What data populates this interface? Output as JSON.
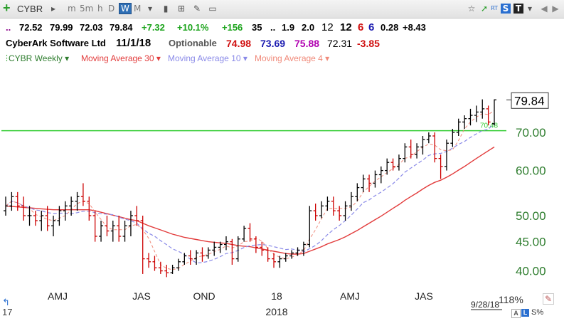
{
  "toolbar": {
    "symbol": "CYBR",
    "timeframes": [
      "m",
      "5m",
      "h",
      "D",
      "W",
      "M"
    ],
    "selected_timeframe": "W",
    "right_icons": [
      "star-icon",
      "rt-icon",
      "s-icon",
      "t-icon",
      "chevron-down-icon",
      "left-arrow-icon",
      "right-arrow-icon"
    ]
  },
  "quote_row": {
    "dots": "..",
    "open": "72.52",
    "high": "79.99",
    "low": "72.03",
    "close": "79.84",
    "change": "+7.32",
    "change_pct": "+10.1%",
    "v1": "+156",
    "v2": "35",
    "v3": "..",
    "v4": "1.9",
    "v5": "2.0",
    "v6": "12",
    "v7": "12",
    "v8": "6",
    "v9": "6",
    "v10": "0.28",
    "v11": "+8.43"
  },
  "info_row": {
    "company": "CyberArk Software Ltd",
    "date": "11/1/18",
    "optionable": "Optionable",
    "ma30": "74.98",
    "ma10": "73.69",
    "ma4": "75.88",
    "val": "72.31",
    "diff": "-3.85"
  },
  "legend": {
    "main": "CYBR Weekly",
    "ma30": "Moving Average 30",
    "ma10": "Moving Average 10",
    "ma4": "Moving Average 4"
  },
  "colors": {
    "up": "#000000",
    "down": "#cc0000",
    "ma30": "#e23b3b",
    "ma10": "#8a8ae8",
    "ma4": "#f08a7a",
    "green_line": "#33cc33",
    "axis_text": "#2e7d2e"
  },
  "chart_data": {
    "type": "candlestick-ohlc",
    "symbol": "CYBR",
    "interval": "weekly",
    "y_scale": "log",
    "ylim": [
      37.5,
      92
    ],
    "y_ticks": [
      "40.00",
      "45.00",
      "50.00",
      "60.00",
      "70.00"
    ],
    "last_price_label": "79.84",
    "horizontal_line": {
      "value": 70.48,
      "label": "70.48"
    },
    "x_labels": [
      "AMJ",
      "JAS",
      "OND",
      "18",
      "AMJ",
      "JAS"
    ],
    "year_label": "2018",
    "left_edge_label": "17",
    "right_date_label": "9/28/18",
    "zoom": "118%",
    "bars": [
      [
        51,
        54,
        50,
        52
      ],
      [
        52,
        55,
        51,
        54
      ],
      [
        54,
        55,
        51,
        52
      ],
      [
        52,
        54,
        49,
        50
      ],
      [
        50,
        52,
        48,
        50
      ],
      [
        50,
        51,
        48,
        49
      ],
      [
        49,
        51,
        47,
        50
      ],
      [
        50,
        52,
        47,
        48
      ],
      [
        48,
        50,
        46,
        49
      ],
      [
        49,
        52,
        48,
        51
      ],
      [
        51,
        53,
        49,
        52
      ],
      [
        52,
        54,
        50,
        53
      ],
      [
        53,
        55,
        51,
        54
      ],
      [
        54,
        57,
        52,
        53
      ],
      [
        53,
        54,
        49,
        50
      ],
      [
        50,
        51,
        45,
        46
      ],
      [
        46,
        49,
        45,
        48
      ],
      [
        48,
        50,
        46,
        47
      ],
      [
        47,
        49,
        45,
        48
      ],
      [
        48,
        50,
        45,
        46
      ],
      [
        46,
        49,
        45,
        48
      ],
      [
        48,
        51,
        46,
        50
      ],
      [
        50,
        52,
        48,
        49
      ],
      [
        49,
        50,
        39.5,
        42
      ],
      [
        42,
        43,
        40.5,
        41.5
      ],
      [
        41.5,
        42.5,
        40,
        40.5
      ],
      [
        40.5,
        41.5,
        39.5,
        40
      ],
      [
        40,
        41,
        39,
        39.7
      ],
      [
        39.7,
        41,
        39.5,
        40.5
      ],
      [
        40.5,
        42,
        40,
        41.5
      ],
      [
        41.5,
        43,
        41,
        42.5
      ],
      [
        42.5,
        43.5,
        41,
        42
      ],
      [
        42,
        43.5,
        41,
        43
      ],
      [
        43,
        44,
        41.5,
        42.5
      ],
      [
        42.5,
        44,
        42,
        43.5
      ],
      [
        43.5,
        45,
        42.5,
        44
      ],
      [
        44,
        45,
        43,
        44.5
      ],
      [
        44.5,
        46,
        43.5,
        45
      ],
      [
        45,
        45.5,
        41,
        42
      ],
      [
        42,
        46,
        41.5,
        45.5
      ],
      [
        45.5,
        48,
        45,
        47.5
      ],
      [
        47.5,
        48.5,
        45,
        45.5
      ],
      [
        45.5,
        46,
        43,
        44
      ],
      [
        44,
        45,
        42.5,
        43.5
      ],
      [
        43.5,
        44,
        41.5,
        42
      ],
      [
        42,
        43,
        40.5,
        41.5
      ],
      [
        41.5,
        42.5,
        40.5,
        42
      ],
      [
        42,
        43,
        41.5,
        42.5
      ],
      [
        42.5,
        43.5,
        42,
        43
      ],
      [
        43,
        44,
        42.5,
        43.5
      ],
      [
        43.5,
        45,
        42.5,
        44.5
      ],
      [
        44.5,
        52,
        44,
        51
      ],
      [
        51,
        52.5,
        49,
        50
      ],
      [
        50,
        53,
        49.5,
        52
      ],
      [
        52,
        54,
        51,
        53
      ],
      [
        53,
        54,
        50,
        51
      ],
      [
        51,
        52,
        49,
        50
      ],
      [
        50,
        53,
        49,
        52
      ],
      [
        52,
        55,
        51,
        54
      ],
      [
        54,
        57,
        53,
        56
      ],
      [
        56,
        59,
        55,
        58
      ],
      [
        58,
        59,
        55,
        57
      ],
      [
        57,
        60,
        56,
        59
      ],
      [
        59,
        61,
        57,
        60
      ],
      [
        60,
        63,
        59,
        62
      ],
      [
        62,
        63,
        60,
        61
      ],
      [
        61,
        64,
        60,
        63
      ],
      [
        63,
        67,
        62,
        66
      ],
      [
        66,
        68,
        63,
        64
      ],
      [
        64,
        67,
        63,
        66
      ],
      [
        66,
        69,
        64,
        68
      ],
      [
        68,
        70,
        67,
        69
      ],
      [
        69,
        70,
        62,
        63
      ],
      [
        63,
        64,
        58,
        61
      ],
      [
        61,
        68,
        60,
        67
      ],
      [
        67,
        71,
        66,
        70
      ],
      [
        70,
        74,
        69,
        73
      ],
      [
        73,
        75,
        71,
        74
      ],
      [
        74,
        77,
        72,
        75
      ],
      [
        75,
        78,
        73,
        76
      ],
      [
        76,
        80,
        74,
        77
      ],
      [
        77,
        78,
        72,
        73
      ],
      [
        72.5,
        80,
        72,
        79.84
      ]
    ],
    "ma30": [
      52,
      51.9,
      51.8,
      51.7,
      51.6,
      51.5,
      51.4,
      51.3,
      51.2,
      51.2,
      51.2,
      51.2,
      51.2,
      51.2,
      51.2,
      51,
      50.7,
      50.4,
      50.1,
      49.8,
      49.5,
      49.2,
      49,
      48.5,
      48,
      47.6,
      47.2,
      46.8,
      46.4,
      46.1,
      45.8,
      45.6,
      45.4,
      45.2,
      45,
      44.9,
      44.8,
      44.7,
      44.5,
      44.3,
      44.2,
      44.1,
      43.9,
      43.7,
      43.5,
      43.3,
      43.1,
      42.9,
      42.8,
      42.8,
      42.9,
      43.3,
      43.7,
      44.1,
      44.6,
      45,
      45.4,
      45.9,
      46.5,
      47.1,
      47.8,
      48.5,
      49.2,
      49.9,
      50.7,
      51.5,
      52.3,
      53.2,
      54,
      54.8,
      55.7,
      56.5,
      57.2,
      57.7,
      58.4,
      59.2,
      60.1,
      61,
      62,
      63,
      64,
      65,
      66
    ]
  }
}
